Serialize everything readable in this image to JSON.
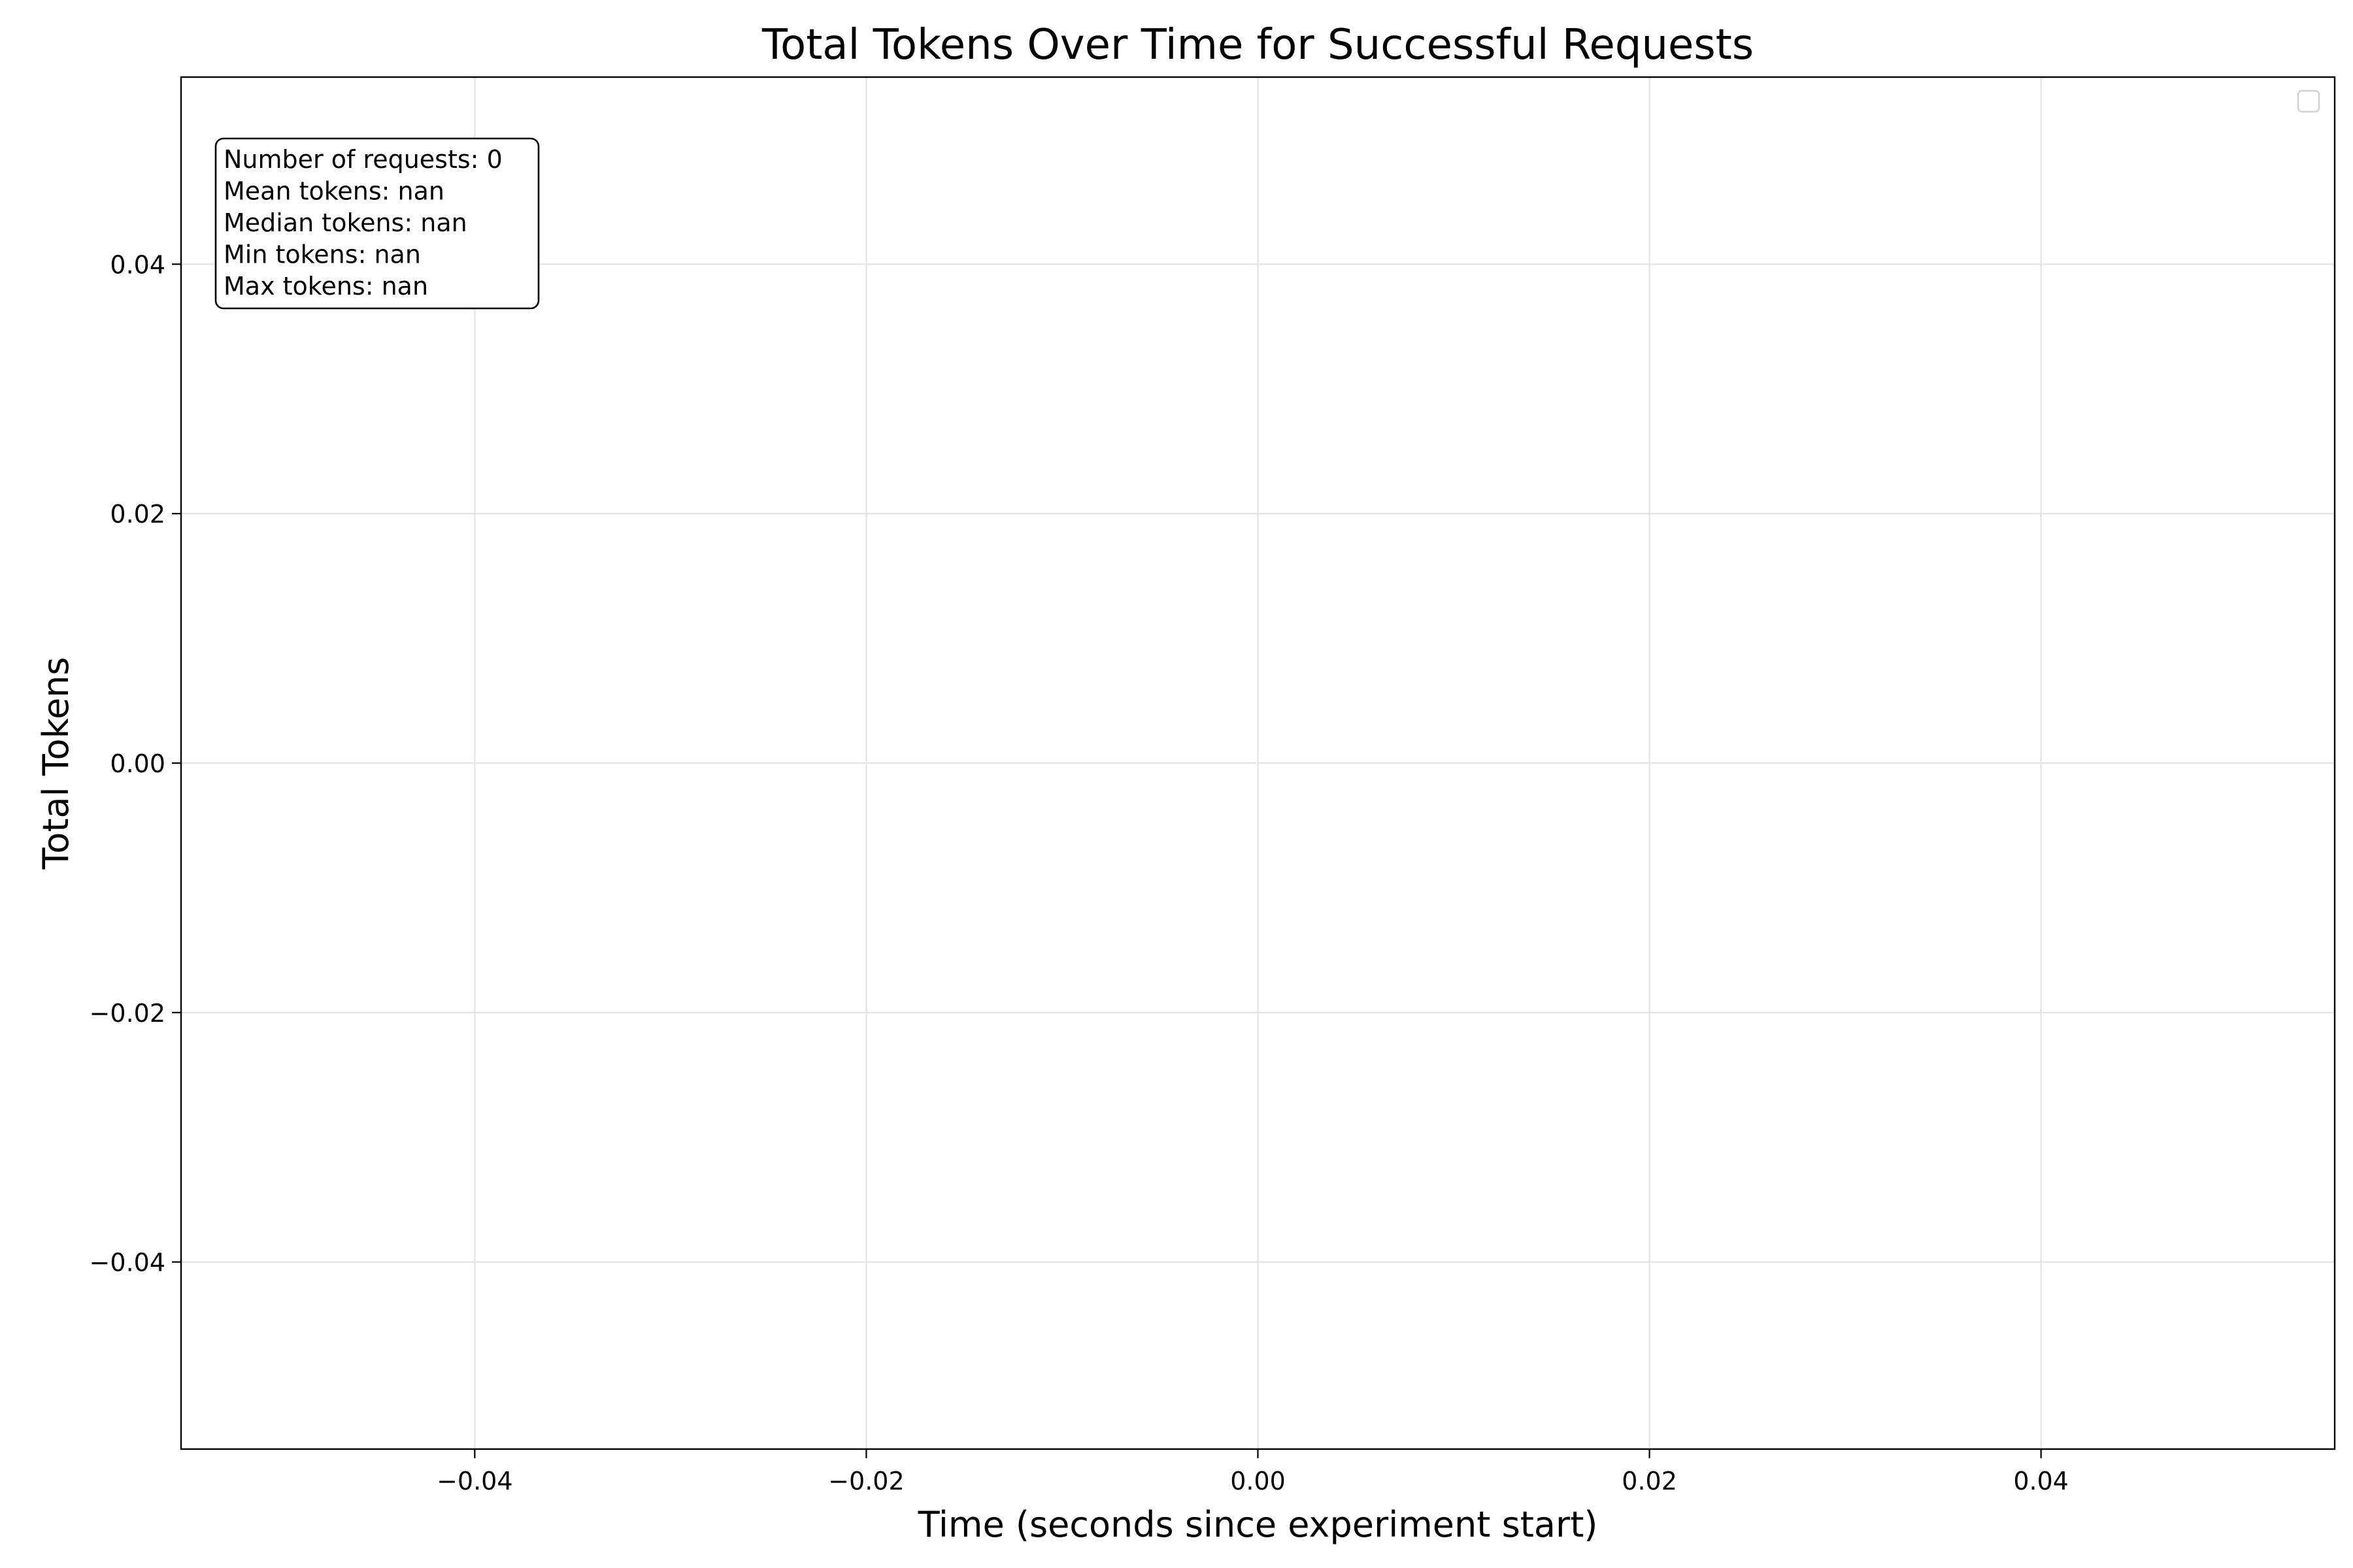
{
  "chart_data": {
    "type": "scatter",
    "title": "Total Tokens Over Time for Successful Requests",
    "xlabel": "Time (seconds since experiment start)",
    "ylabel": "Total Tokens",
    "xlim": [
      -0.055,
      0.055
    ],
    "ylim": [
      -0.055,
      0.055
    ],
    "x_ticks": [
      -0.04,
      -0.02,
      0.0,
      0.02,
      0.04
    ],
    "x_tick_labels": [
      "−0.04",
      "−0.02",
      "0.00",
      "0.02",
      "0.04"
    ],
    "y_ticks": [
      -0.04,
      -0.02,
      0.0,
      0.02,
      0.04
    ],
    "y_tick_labels": [
      "−0.04",
      "−0.02",
      "0.00",
      "0.02",
      "0.04"
    ],
    "grid": true,
    "series": [],
    "legend_entries": [],
    "legend_placement": "top-right",
    "annotation_lines": [
      "Number of requests: 0",
      "Mean tokens: nan",
      "Median tokens: nan",
      "Min tokens: nan",
      "Max tokens: nan"
    ],
    "annotation_placement": "top-left"
  }
}
